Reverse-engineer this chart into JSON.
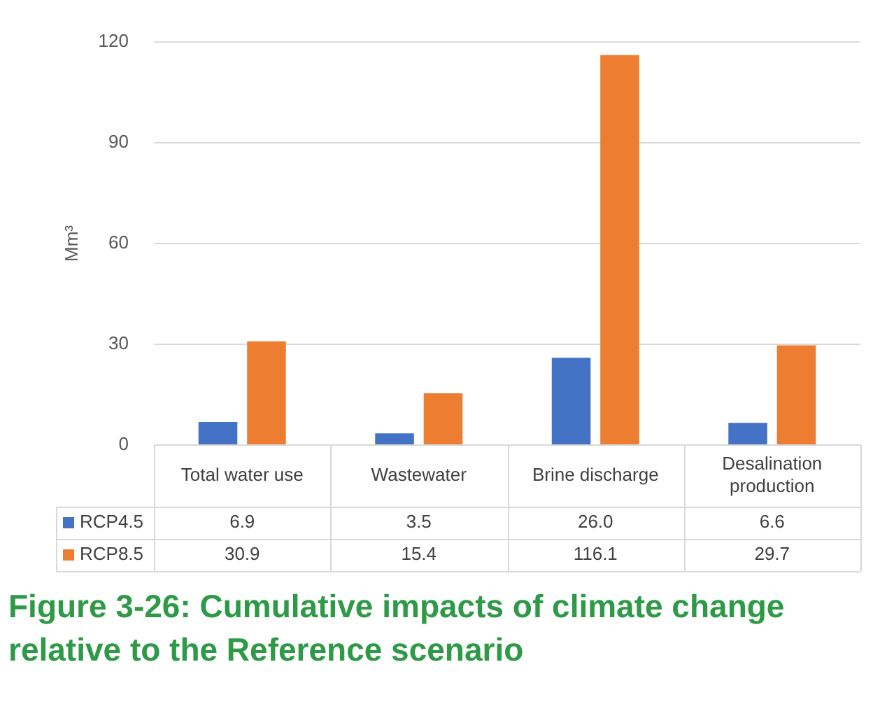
{
  "chart_data": {
    "type": "bar",
    "title": "Figure 3-26: Cumulative impacts of climate change relative to the Reference scenario",
    "ylabel": "Mm³",
    "categories": [
      "Total water use",
      "Wastewater",
      "Brine discharge",
      "Desalination production"
    ],
    "series": [
      {
        "name": "RCP4.5",
        "color": "#4472c4",
        "values": [
          6.9,
          3.5,
          26.0,
          6.6
        ]
      },
      {
        "name": "RCP8.5",
        "color": "#ed7d31",
        "values": [
          30.9,
          15.4,
          116.1,
          29.7
        ]
      }
    ],
    "value_labels": [
      [
        "6.9",
        "3.5",
        "26.0",
        "6.6"
      ],
      [
        "30.9",
        "15.4",
        "116.1",
        "29.7"
      ]
    ],
    "ylim": [
      0,
      120
    ],
    "yticks": [
      0,
      30,
      60,
      90,
      120
    ],
    "grid": "y",
    "legend": "bottom"
  }
}
